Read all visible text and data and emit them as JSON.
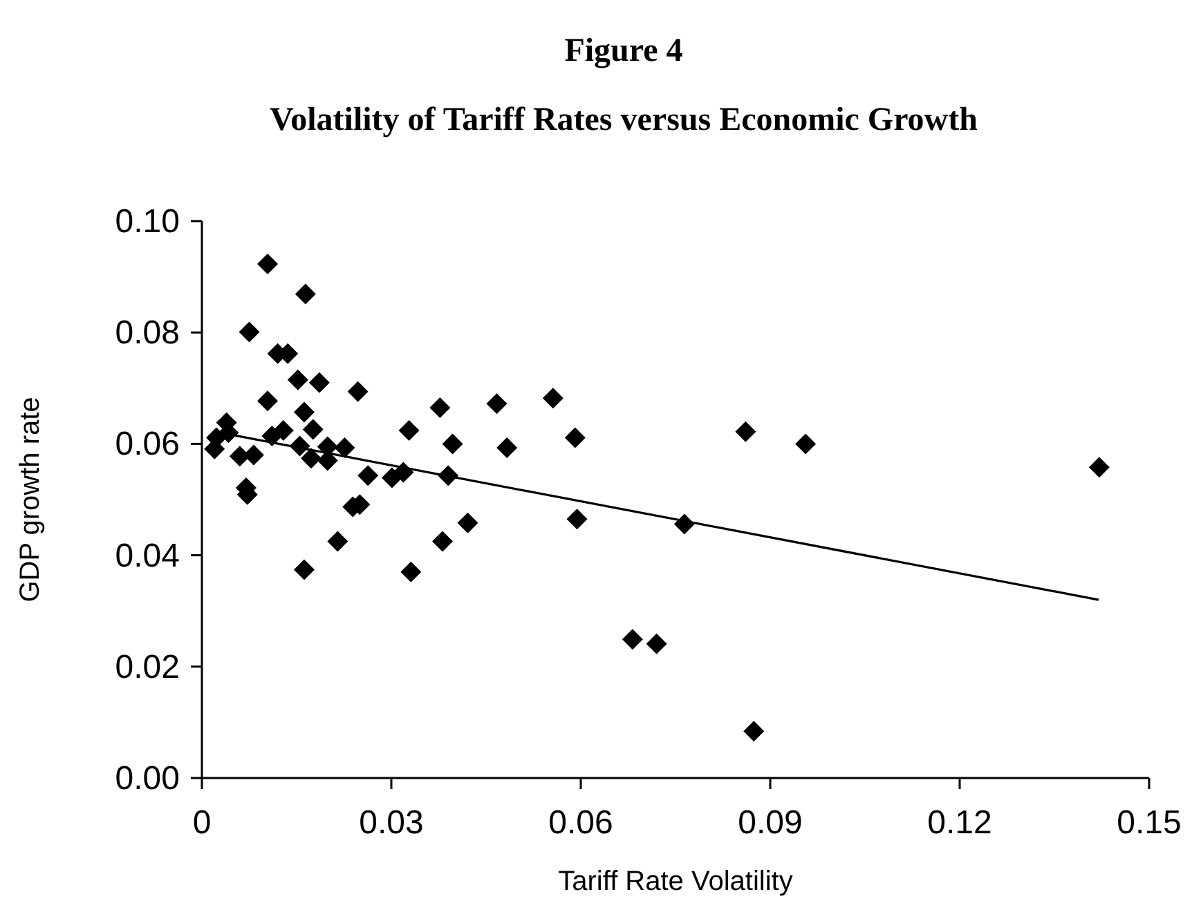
{
  "chart_data": {
    "type": "scatter",
    "title": "Figure 4",
    "subtitle": "Volatility of Tariff Rates versus Economic Growth",
    "xlabel": "Tariff Rate Volatility",
    "ylabel": "GDP growth rate",
    "xlim": [
      0,
      0.15
    ],
    "ylim": [
      0,
      0.1
    ],
    "xticks": [
      {
        "value": 0,
        "label": "0"
      },
      0.03,
      0.06,
      0.09,
      0.12,
      0.15
    ],
    "yticks": [
      {
        "value": 0,
        "label": "0.00"
      },
      {
        "value": 0.02,
        "label": "0.02"
      },
      {
        "value": 0.04,
        "label": "0.04"
      },
      {
        "value": 0.06,
        "label": "0.06"
      },
      {
        "value": 0.08,
        "label": "0.08"
      },
      {
        "value": 0.1,
        "label": "0.10"
      }
    ],
    "grid": false,
    "marker": "diamond",
    "series": [
      {
        "color": "#000000",
        "x": [
          0.0104,
          0.0164,
          0.0075,
          0.012,
          0.0136,
          0.0152,
          0.0186,
          0.0247,
          0.0104,
          0.0162,
          0.0176,
          0.0039,
          0.0129,
          0.0111,
          0.0328,
          0.0377,
          0.0467,
          0.0397,
          0.0023,
          0.002,
          0.0042,
          0.006,
          0.0082,
          0.0155,
          0.0173,
          0.0199,
          0.0199,
          0.0226,
          0.0263,
          0.0301,
          0.0319,
          0.039,
          0.007,
          0.0072,
          0.0239,
          0.025,
          0.0215,
          0.0381,
          0.0421,
          0.0162,
          0.0331,
          0.0556,
          0.0483,
          0.0591,
          0.0594,
          0.0764,
          0.0682,
          0.072,
          0.0861,
          0.0956,
          0.0874,
          0.1421
        ],
        "values": [
          0.0923,
          0.0869,
          0.0801,
          0.0762,
          0.0762,
          0.0715,
          0.071,
          0.0694,
          0.0677,
          0.0657,
          0.0626,
          0.0638,
          0.0624,
          0.0614,
          0.0624,
          0.0665,
          0.0672,
          0.06,
          0.0611,
          0.0591,
          0.062,
          0.0578,
          0.058,
          0.0596,
          0.0574,
          0.057,
          0.0595,
          0.0593,
          0.0543,
          0.0539,
          0.0549,
          0.0543,
          0.0521,
          0.0509,
          0.0487,
          0.0491,
          0.0425,
          0.0425,
          0.0458,
          0.0374,
          0.037,
          0.0682,
          0.0593,
          0.0611,
          0.0465,
          0.0456,
          0.0249,
          0.0241,
          0.0622,
          0.06,
          0.0084,
          0.0558
        ]
      },
      {
        "type": "line",
        "color": "#000000",
        "marker": "none",
        "x": [
          0.002,
          0.142
        ],
        "values": [
          0.0622,
          0.032
        ]
      }
    ]
  }
}
